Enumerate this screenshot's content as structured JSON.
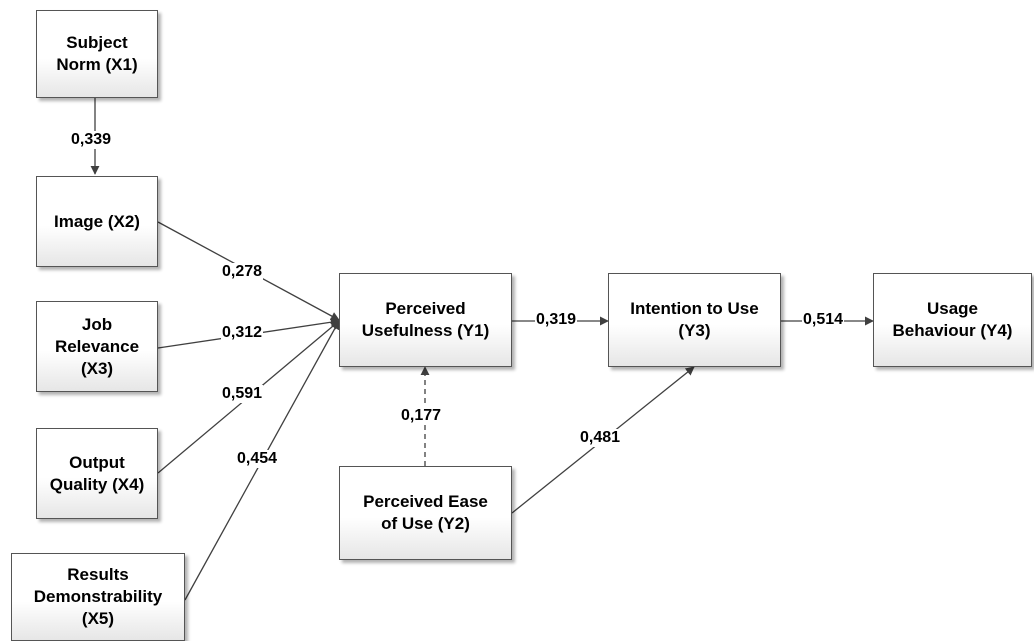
{
  "nodes": {
    "x1": "Subject\nNorm (X1)",
    "x2": "Image (X2)",
    "x3": "Job\nRelevance\n(X3)",
    "x4": "Output\nQuality (X4)",
    "x5": "Results\nDemonstrability\n(X5)",
    "y1": "Perceived\nUsefulness (Y1)",
    "y2": "Perceived Ease\nof Use (Y2)",
    "y3": "Intention to Use\n(Y3)",
    "y4": "Usage\nBehaviour (Y4)"
  },
  "edges": {
    "x1_x2": "0,339",
    "x2_y1": "0,278",
    "x3_y1": "0,312",
    "x4_y1": "0,591",
    "x5_y1": "0,454",
    "y2_y1": "0,177",
    "y1_y3": "0,319",
    "y2_y3": "0,481",
    "y3_y4": "0,514"
  },
  "colors": {
    "line": "#404040",
    "border": "#555555"
  }
}
